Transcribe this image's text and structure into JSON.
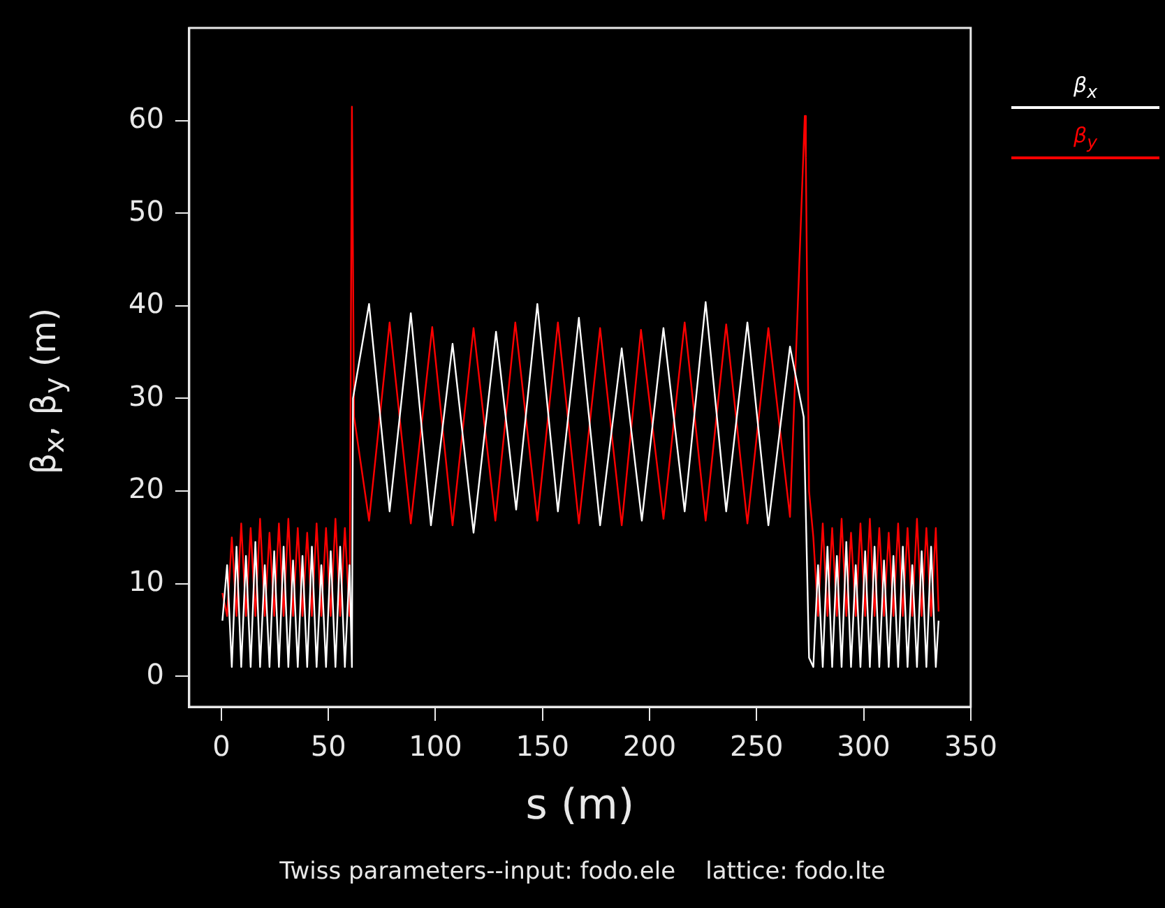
{
  "chart_data": {
    "type": "line",
    "xlabel": "s (m)",
    "ylabel": "β$_{x}$, β$_{y}$ (m)",
    "annotations": [
      "Twiss parameters--input: fodo.ele    lattice: fodo.lte"
    ],
    "xlim": [
      -15,
      350
    ],
    "xticks": [
      0,
      50,
      100,
      150,
      200,
      250,
      300,
      350
    ],
    "ylim": [
      -3.3,
      70
    ],
    "yticks": [
      0,
      10,
      20,
      30,
      40,
      50,
      60
    ],
    "grid": false,
    "legend": "top right",
    "marker": "none",
    "line_style": "solid",
    "series": [
      {
        "name": "β$_{x}$",
        "color": "#ffffff",
        "type": "line",
        "x": [
          0.5,
          2.7,
          4.9,
          7.1,
          9.3,
          11.5,
          13.7,
          15.9,
          18.1,
          20.3,
          22.5,
          24.7,
          26.9,
          29.1,
          31.3,
          33.5,
          35.7,
          37.9,
          40.1,
          42.3,
          44.5,
          46.7,
          48.9,
          51.1,
          53.3,
          55.5,
          57.7,
          59.9,
          61,
          61.5,
          69,
          78.6,
          88.5,
          97.9,
          108,
          117.8,
          128.3,
          137.7,
          147.6,
          157.2,
          167,
          176.9,
          187,
          196.4,
          206.5,
          216.4,
          226.2,
          235.8,
          245.7,
          255.5,
          265.6,
          272,
          274.5,
          276.5,
          278.7,
          280.9,
          283.1,
          285.3,
          287.5,
          289.7,
          291.9,
          294.1,
          296.3,
          298.5,
          300.7,
          302.9,
          305.1,
          307.3,
          309.5,
          311.7,
          313.9,
          316.1,
          318.3,
          320.5,
          322.7,
          324.9,
          327.1,
          329.3,
          331.5,
          333.7,
          335
        ],
        "values": [
          6,
          12,
          1,
          14,
          1,
          13,
          1,
          14.5,
          1,
          12,
          1,
          13.5,
          1,
          14,
          1,
          12.5,
          1,
          13,
          1,
          14,
          1,
          12,
          1,
          13.5,
          1,
          14,
          1,
          12,
          1,
          30,
          40.2,
          17.8,
          39.2,
          16.3,
          35.9,
          15.5,
          37.2,
          18,
          40.2,
          17.8,
          38.7,
          16.3,
          35.4,
          16.8,
          37.6,
          17.8,
          40.4,
          17.8,
          38.2,
          16.3,
          35.6,
          28,
          2,
          1,
          12,
          1,
          14,
          1,
          13,
          1,
          14.5,
          1,
          12,
          1,
          13.5,
          1,
          14,
          1,
          12.5,
          1,
          13,
          1,
          14,
          1,
          12,
          1,
          13.5,
          1,
          14,
          1,
          6
        ]
      },
      {
        "name": "β$_{y}$",
        "color": "#ff0000",
        "type": "line",
        "x": [
          0.5,
          2.7,
          4.9,
          7.1,
          9.3,
          11.5,
          13.7,
          15.9,
          18.1,
          20.3,
          22.5,
          24.7,
          26.9,
          29.1,
          31.3,
          33.5,
          35.7,
          37.9,
          40.1,
          42.3,
          44.5,
          46.7,
          48.9,
          51.1,
          53.3,
          55.5,
          57.7,
          59.9,
          61,
          62,
          69,
          78.6,
          88.5,
          98.5,
          108,
          117.8,
          128,
          137.3,
          147.6,
          157.2,
          167,
          176.9,
          187,
          196,
          206.5,
          216.4,
          226.2,
          235.8,
          245.7,
          255.5,
          265.6,
          272.5,
          273,
          274.5,
          276.5,
          278.7,
          280.9,
          283.1,
          285.3,
          287.5,
          289.7,
          291.9,
          294.1,
          296.3,
          298.5,
          300.7,
          302.9,
          305.1,
          307.3,
          309.5,
          311.7,
          313.9,
          316.1,
          318.3,
          320.5,
          322.7,
          324.9,
          327.1,
          329.3,
          331.5,
          333.7,
          335
        ],
        "values": [
          9,
          6.5,
          15,
          6.5,
          16.5,
          6.5,
          16,
          6.5,
          17,
          6.5,
          15.5,
          6.5,
          16.5,
          6.5,
          17,
          6.5,
          16,
          6.5,
          15.5,
          6.5,
          16.5,
          6.5,
          16,
          6.5,
          17,
          6.5,
          16,
          6.5,
          61.5,
          28,
          16.8,
          38.2,
          16.5,
          37.7,
          16.3,
          37.6,
          16.8,
          38.2,
          16.8,
          38.2,
          16.5,
          37.6,
          16.3,
          37.4,
          17,
          38.2,
          16.8,
          38,
          16.5,
          37.6,
          17.2,
          60.5,
          56,
          20,
          15,
          6.5,
          16.5,
          6.5,
          16,
          6.5,
          17,
          6.5,
          15.5,
          6.5,
          16.5,
          6.5,
          17,
          6.5,
          16,
          6.5,
          15.5,
          6.5,
          16.5,
          6.5,
          16,
          6.5,
          17,
          6.5,
          16,
          6.5,
          16,
          7
        ]
      }
    ]
  }
}
